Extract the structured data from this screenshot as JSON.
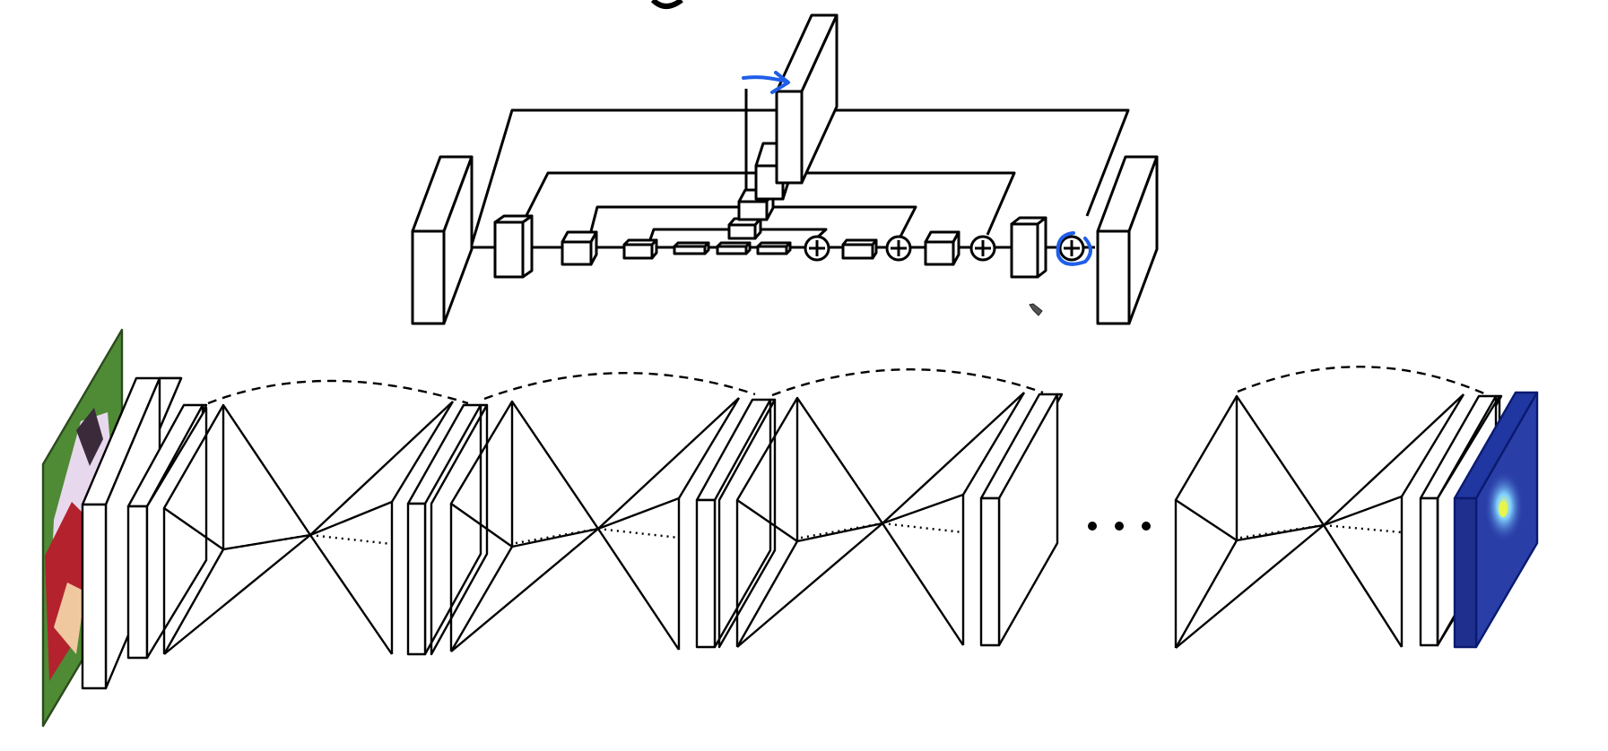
{
  "colors": {
    "stroke": "#000000",
    "box_fill": "#ffffff",
    "annotation": "#1f5ee8",
    "input_field": "#4f8a35",
    "input_player_light": "#e8d8ee",
    "input_player_dark": "#b4222e",
    "heatmap_base": "#2a3ea8",
    "heatmap_hot": "#e8f54a"
  },
  "icons": {
    "sum_node": "circled-plus-icon",
    "annotation_arrow": "hand-drawn-arrow-icon",
    "annotation_circle": "hand-drawn-circle-icon",
    "cursor": "pen-cursor-icon",
    "input_image": "sports-photo-input",
    "output_heatmap": "heatmap-output"
  },
  "labels": {
    "ellipsis": "• • •"
  }
}
